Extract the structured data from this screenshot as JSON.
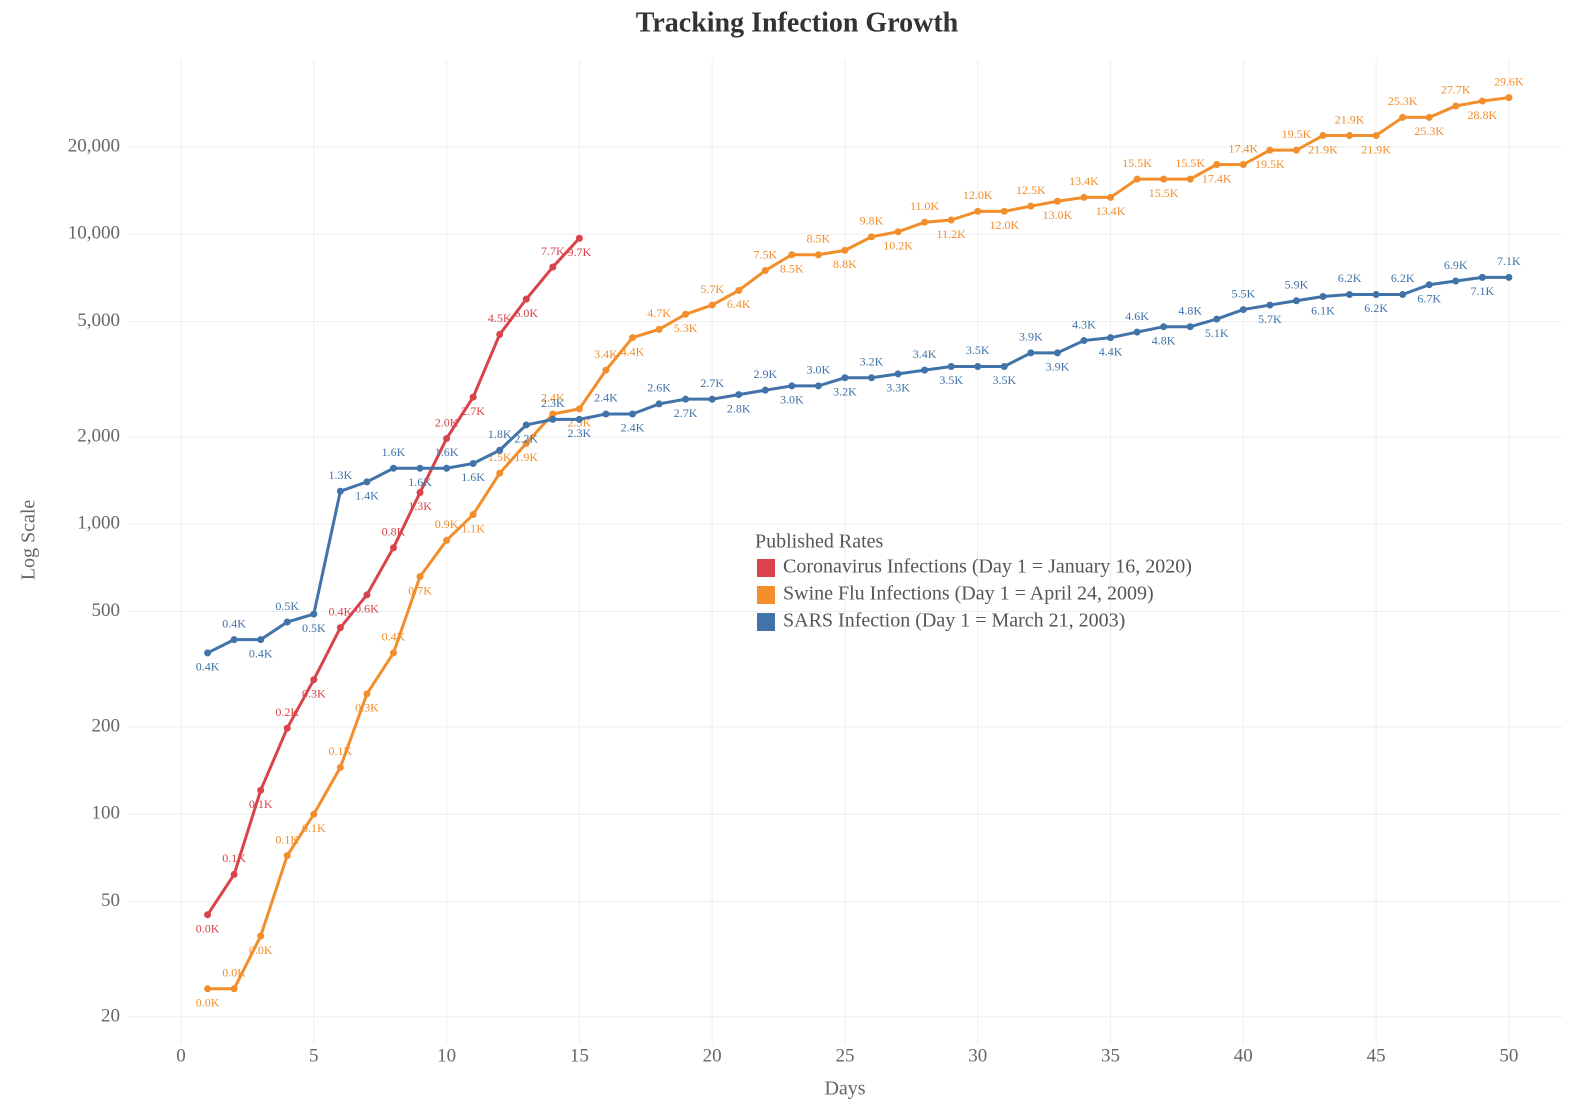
{
  "chart_data": {
    "type": "line",
    "title": "Tracking Infection Growth",
    "x_label": "Days",
    "y_label": "Log Scale",
    "log_y": true,
    "grid": true,
    "legend_title": "Published Rates",
    "xlim": [
      -2,
      52
    ],
    "ylim": [
      16,
      40000
    ],
    "xticks": [
      0,
      5,
      10,
      15,
      20,
      25,
      30,
      35,
      40,
      45,
      50
    ],
    "yticks": [
      20,
      50,
      100,
      200,
      500,
      {
        "value": 1000,
        "label": "1,000"
      },
      {
        "value": 2000,
        "label": "2,000"
      },
      {
        "value": 5000,
        "label": "5,000"
      },
      {
        "value": 10000,
        "label": "10,000"
      },
      {
        "value": 20000,
        "label": "20,000"
      }
    ],
    "series": [
      {
        "name": "Coronavirus Infections (Day 1 = January 16, 2020)",
        "color": "#d9434b",
        "x": [
          1,
          2,
          3,
          4,
          5,
          6,
          7,
          8,
          9,
          10,
          11,
          12,
          13,
          14,
          15
        ],
        "values": [
          45,
          62,
          121,
          198,
          291,
          440,
          571,
          830,
          1287,
          1975,
          2744,
          4515,
          5974,
          7711,
          9692
        ],
        "value_labels": [
          "0.0K",
          "0.1K",
          "0.1K",
          "0.2K",
          "0.3K",
          "0.4K",
          "0.6K",
          "0.8K",
          "1.3K",
          "2.0K",
          "2.7K",
          "4.5K",
          "6.0K",
          "7.7K",
          "9.7K"
        ]
      },
      {
        "name": "Swine Flu Infections (Day 1 = April 24, 2009)",
        "color": "#f28e2b",
        "x": [
          1,
          2,
          3,
          4,
          5,
          6,
          7,
          8,
          9,
          10,
          11,
          12,
          13,
          14,
          15,
          16,
          17,
          18,
          19,
          20,
          21,
          22,
          23,
          24,
          25,
          26,
          27,
          28,
          29,
          30,
          31,
          32,
          33,
          34,
          35,
          36,
          37,
          38,
          39,
          40,
          41,
          42,
          43,
          44,
          45,
          46,
          47,
          48,
          49,
          50
        ],
        "values": [
          25,
          25,
          38,
          72,
          100,
          145,
          260,
          360,
          660,
          880,
          1080,
          1500,
          1900,
          2400,
          2500,
          3400,
          4400,
          4700,
          5300,
          5700,
          6400,
          7500,
          8500,
          8500,
          8800,
          9800,
          10200,
          11000,
          11200,
          12000,
          12000,
          12500,
          13000,
          13400,
          13400,
          15500,
          15500,
          15500,
          17400,
          17400,
          19500,
          19500,
          21900,
          21900,
          21900,
          25300,
          25300,
          27700,
          28800,
          29600
        ],
        "value_labels": [
          "0.0K",
          "0.0K",
          "0.0K",
          "0.1K",
          "0.1K",
          "0.1K",
          "0.3K",
          "0.4K",
          "0.7K",
          "0.9K",
          "1.1K",
          "1.5K",
          "1.9K",
          "2.4K",
          "2.5K",
          "3.4K",
          "4.4K",
          "4.7K",
          "5.3K",
          "5.7K",
          "6.4K",
          "7.5K",
          "8.5K",
          "8.5K",
          "8.8K",
          "9.8K",
          "10.2K",
          "11.0K",
          "11.2K",
          "12.0K",
          "12.0K",
          "12.5K",
          "13.0K",
          "13.4K",
          "13.4K",
          "15.5K",
          "15.5K",
          "15.5K",
          "17.4K",
          "17.4K",
          "19.5K",
          "19.5K",
          "21.9K",
          "21.9K",
          "21.9K",
          "25.3K",
          "25.3K",
          "27.7K",
          "28.8K",
          "29.6K"
        ]
      },
      {
        "name": "SARS Infection (Day 1 = March 21, 2003)",
        "color": "#4173a8",
        "x": [
          1,
          2,
          3,
          4,
          5,
          6,
          7,
          8,
          9,
          10,
          11,
          12,
          13,
          14,
          15,
          16,
          17,
          18,
          19,
          20,
          21,
          22,
          23,
          24,
          25,
          26,
          27,
          28,
          29,
          30,
          31,
          32,
          33,
          34,
          35,
          36,
          37,
          38,
          39,
          40,
          41,
          42,
          43,
          44,
          45,
          46,
          47,
          48,
          49,
          50
        ],
        "values": [
          360,
          400,
          400,
          460,
          490,
          1300,
          1400,
          1560,
          1560,
          1560,
          1620,
          1800,
          2200,
          2300,
          2300,
          2400,
          2400,
          2600,
          2700,
          2700,
          2800,
          2900,
          3000,
          3000,
          3200,
          3200,
          3300,
          3400,
          3500,
          3500,
          3500,
          3900,
          3900,
          4300,
          4400,
          4600,
          4800,
          4800,
          5100,
          5500,
          5700,
          5900,
          6100,
          6200,
          6200,
          6200,
          6700,
          6900,
          7100,
          7100
        ],
        "value_labels": [
          "0.4K",
          "0.4K",
          "0.4K",
          "0.5K",
          "0.5K",
          "1.3K",
          "1.4K",
          "1.6K",
          "1.6K",
          "1.6K",
          "1.6K",
          "1.8K",
          "2.2K",
          "2.3K",
          "2.3K",
          "2.4K",
          "2.4K",
          "2.6K",
          "2.7K",
          "2.7K",
          "2.8K",
          "2.9K",
          "3.0K",
          "3.0K",
          "3.2K",
          "3.2K",
          "3.3K",
          "3.4K",
          "3.5K",
          "3.5K",
          "3.5K",
          "3.9K",
          "3.9K",
          "4.3K",
          "4.4K",
          "4.6K",
          "4.8K",
          "4.8K",
          "5.1K",
          "5.5K",
          "5.7K",
          "5.9K",
          "6.1K",
          "6.2K",
          "6.2K",
          "6.2K",
          "6.7K",
          "6.9K",
          "7.1K",
          "7.1K"
        ]
      }
    ]
  }
}
